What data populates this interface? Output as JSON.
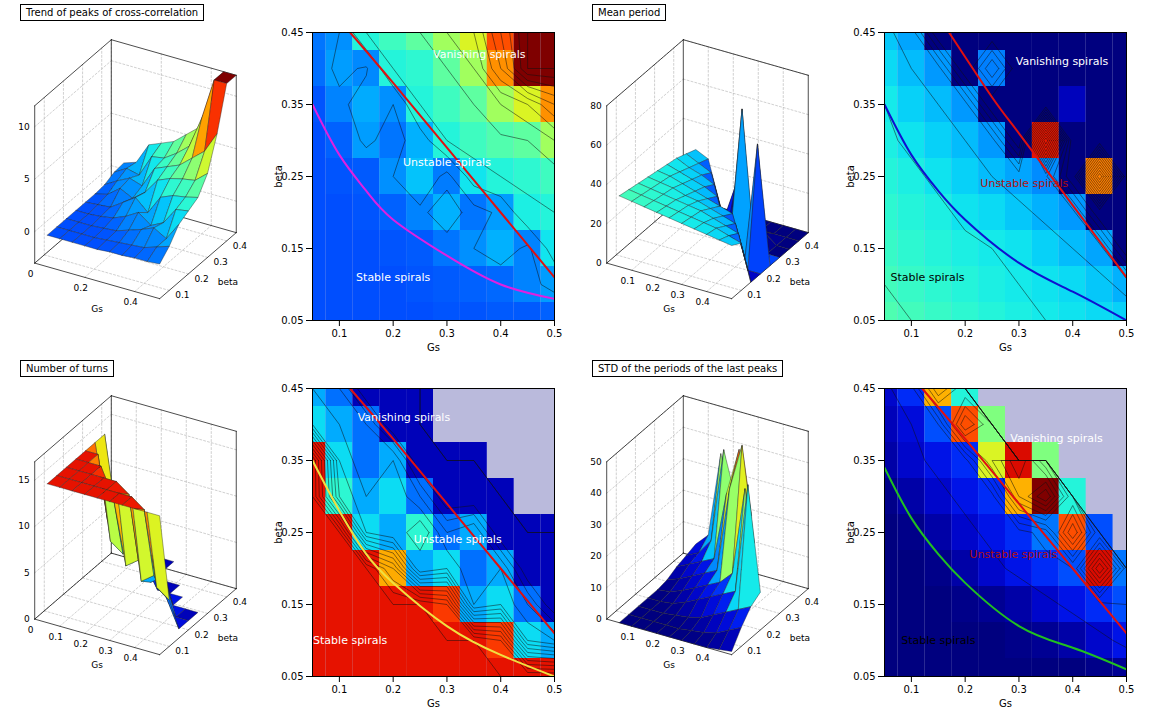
{
  "chart_data": [
    {
      "type": "surface_contour",
      "title": "Trend of peaks of cross-correlation",
      "x": [
        0.05,
        0.1,
        0.15,
        0.2,
        0.25,
        0.3,
        0.35,
        0.4,
        0.45,
        0.5
      ],
      "y": [
        0.05,
        0.1,
        0.15,
        0.2,
        0.25,
        0.3,
        0.35,
        0.4,
        0.45
      ],
      "values": [
        [
          0,
          0,
          0,
          0,
          0,
          0.1,
          0.1,
          0.2,
          0.2,
          0.3
        ],
        [
          0,
          0,
          0,
          0,
          0.1,
          0.2,
          0.3,
          0.4,
          0.8,
          1.2
        ],
        [
          0,
          0,
          0,
          0.1,
          0.2,
          0.6,
          1.0,
          1.5,
          0.8,
          2.5
        ],
        [
          0,
          0,
          0.1,
          0.3,
          0.8,
          1.5,
          0.6,
          1.2,
          2.8,
          3.0
        ],
        [
          0,
          0.1,
          0.2,
          1.0,
          1.8,
          0.7,
          2.5,
          3.0,
          3.2,
          3.5
        ],
        [
          0,
          0.3,
          1.2,
          0.6,
          1.5,
          3.0,
          3.5,
          3.8,
          4.0,
          5.0
        ],
        [
          0.1,
          0.8,
          1.4,
          1.0,
          3.0,
          3.5,
          4.0,
          5.0,
          6.0,
          8.0
        ],
        [
          0.5,
          1.2,
          0.9,
          3.0,
          3.2,
          4.0,
          5.0,
          8.0,
          12,
          12
        ],
        [
          0.6,
          1.0,
          3.0,
          3.5,
          4.0,
          5.0,
          6.0,
          9.0,
          12,
          12
        ]
      ],
      "zlim": [
        -3,
        12
      ],
      "zticks": [
        0,
        5,
        10
      ],
      "surface": {
        "xlabel": "Gs",
        "ylabel": "beta",
        "xlim": [
          0,
          0.5
        ],
        "xticks": [
          0,
          0.2,
          0.4
        ],
        "ylim": [
          0.05,
          0.45
        ],
        "yticks": [
          0.1,
          0.2,
          0.3,
          0.4
        ]
      },
      "contour": {
        "xlabel": "Gs",
        "ylabel": "beta",
        "xlim": [
          0.05,
          0.5
        ],
        "xticks": [
          0.1,
          0.2,
          0.3,
          0.4,
          0.5
        ],
        "ylim": [
          0.05,
          0.45
        ],
        "yticks": [
          0.05,
          0.15,
          0.25,
          0.35,
          0.45
        ]
      },
      "boundaries": [
        {
          "color": "#e01010",
          "x": [
            0.12,
            0.2,
            0.3,
            0.4,
            0.5
          ],
          "y": [
            0.45,
            0.38,
            0.29,
            0.2,
            0.11
          ]
        },
        {
          "color": "#e020e0",
          "x": [
            0.05,
            0.1,
            0.15,
            0.2,
            0.3,
            0.4,
            0.5
          ],
          "y": [
            0.35,
            0.28,
            0.23,
            0.19,
            0.14,
            0.1,
            0.08
          ]
        }
      ],
      "annotations": [
        {
          "text": "Vanishing spirals",
          "x": 0.36,
          "y": 0.42,
          "color": "#ffffff"
        },
        {
          "text": "Unstable spirals",
          "x": 0.3,
          "y": 0.27,
          "color": "#ffffff"
        },
        {
          "text": "Stable spirals",
          "x": 0.2,
          "y": 0.11,
          "color": "#ffffff"
        }
      ]
    },
    {
      "type": "surface_contour",
      "title": "Mean period",
      "x": [
        0.05,
        0.1,
        0.15,
        0.2,
        0.25,
        0.3,
        0.35,
        0.4,
        0.45,
        0.5
      ],
      "y": [
        0.05,
        0.1,
        0.15,
        0.2,
        0.25,
        0.3,
        0.35,
        0.4,
        0.45
      ],
      "values": [
        [
          36,
          35,
          34,
          33,
          32,
          31,
          30,
          29,
          28,
          27
        ],
        [
          35,
          34,
          33,
          32,
          31,
          30,
          29,
          28,
          26,
          24
        ],
        [
          34,
          33,
          32,
          31,
          30,
          29,
          27,
          25,
          23,
          0
        ],
        [
          33,
          32,
          31,
          29,
          28,
          26,
          24,
          22,
          0,
          0
        ],
        [
          32,
          31,
          29,
          27,
          25,
          23,
          21,
          0,
          60,
          0
        ],
        [
          31,
          29,
          27,
          25,
          22,
          0,
          70,
          0,
          0,
          0
        ],
        [
          30,
          27,
          25,
          22,
          0,
          0,
          0,
          5,
          0,
          0
        ],
        [
          28,
          25,
          22,
          0,
          20,
          0,
          0,
          0,
          0,
          0
        ],
        [
          26,
          23,
          0,
          0,
          0,
          0,
          0,
          0,
          0,
          0
        ]
      ],
      "zlim": [
        0,
        80
      ],
      "zticks": [
        0,
        20,
        40,
        60,
        80
      ],
      "surface": {
        "xlabel": "Gs",
        "ylabel": "beta",
        "xlim": [
          0,
          0.5
        ],
        "xticks": [
          0.1,
          0.2,
          0.3,
          0.4
        ],
        "ylim": [
          0.05,
          0.45
        ],
        "yticks": [
          0.1,
          0.2,
          0.3,
          0.4
        ]
      },
      "contour": {
        "xlabel": "Gs",
        "ylabel": "beta",
        "xlim": [
          0.05,
          0.5
        ],
        "xticks": [
          0.1,
          0.2,
          0.3,
          0.4,
          0.5
        ],
        "ylim": [
          0.05,
          0.45
        ],
        "yticks": [
          0.05,
          0.15,
          0.25,
          0.35,
          0.45
        ]
      },
      "boundaries": [
        {
          "color": "#e01010",
          "x": [
            0.17,
            0.25,
            0.3,
            0.4,
            0.5
          ],
          "y": [
            0.45,
            0.36,
            0.31,
            0.21,
            0.11
          ]
        },
        {
          "color": "#1010d0",
          "x": [
            0.05,
            0.1,
            0.15,
            0.2,
            0.3,
            0.4,
            0.5
          ],
          "y": [
            0.35,
            0.28,
            0.23,
            0.19,
            0.13,
            0.09,
            0.05
          ]
        }
      ],
      "annotations": [
        {
          "text": "Vanishing spirals",
          "x": 0.38,
          "y": 0.41,
          "color": "#ffffff"
        },
        {
          "text": "Unstable spirals",
          "x": 0.31,
          "y": 0.24,
          "color": "#b01010"
        },
        {
          "text": "Stable spirals",
          "x": 0.13,
          "y": 0.11,
          "color": "#000000"
        }
      ]
    },
    {
      "type": "surface_contour",
      "title": "Number of turns",
      "x": [
        0.05,
        0.1,
        0.15,
        0.2,
        0.25,
        0.3,
        0.35,
        0.4,
        0.45,
        0.5
      ],
      "y": [
        0.05,
        0.1,
        0.15,
        0.2,
        0.25,
        0.3,
        0.35,
        0.4,
        0.45
      ],
      "values": [
        [
          15,
          15,
          15,
          15,
          15,
          15,
          15,
          15,
          15,
          15
        ],
        [
          15,
          15,
          15,
          15,
          15,
          15,
          15,
          14,
          6,
          5
        ],
        [
          15,
          15,
          15,
          15,
          15,
          14,
          5,
          6,
          4,
          1
        ],
        [
          15,
          15,
          15,
          12,
          5,
          6,
          4,
          5,
          1,
          1
        ],
        [
          15,
          15,
          6,
          5,
          7,
          4,
          5,
          1,
          1,
          1
        ],
        [
          15,
          7,
          5,
          6,
          4,
          1,
          1,
          1,
          null,
          null
        ],
        [
          15,
          6,
          4,
          5,
          1,
          1,
          1,
          null,
          null,
          null
        ],
        [
          6,
          5,
          4,
          1,
          1,
          null,
          null,
          null,
          null,
          null
        ],
        [
          5,
          4,
          1,
          1,
          1,
          null,
          null,
          null,
          null,
          null
        ]
      ],
      "zlim": [
        0,
        17
      ],
      "zticks": [
        0,
        5,
        10,
        15
      ],
      "surface": {
        "xlabel": "Gs",
        "ylabel": "beta",
        "xlim": [
          0,
          0.5
        ],
        "xticks": [
          0,
          0.1,
          0.2,
          0.3,
          0.4
        ],
        "ylim": [
          0.05,
          0.45
        ],
        "yticks": [
          0.1,
          0.2,
          0.3,
          0.4
        ]
      },
      "contour": {
        "xlabel": "Gs",
        "ylabel": "beta",
        "xlim": [
          0.05,
          0.5
        ],
        "xticks": [
          0.1,
          0.2,
          0.3,
          0.4,
          0.5
        ],
        "ylim": [
          0.05,
          0.45
        ],
        "yticks": [
          0.05,
          0.15,
          0.25,
          0.35,
          0.45
        ]
      },
      "boundaries": [
        {
          "color": "#e01010",
          "x": [
            0.12,
            0.2,
            0.3,
            0.4,
            0.5
          ],
          "y": [
            0.45,
            0.38,
            0.29,
            0.2,
            0.11
          ]
        },
        {
          "color": "#f0e040",
          "x": [
            0.05,
            0.1,
            0.15,
            0.2,
            0.3,
            0.4,
            0.5
          ],
          "y": [
            0.35,
            0.28,
            0.22,
            0.18,
            0.12,
            0.08,
            0.05
          ]
        }
      ],
      "annotations": [
        {
          "text": "Vanishing spirals",
          "x": 0.22,
          "y": 0.41,
          "color": "#ffffff"
        },
        {
          "text": "Unstable spirals",
          "x": 0.32,
          "y": 0.24,
          "color": "#ffffff"
        },
        {
          "text": "Stable spirals",
          "x": 0.12,
          "y": 0.1,
          "color": "#ffffff"
        }
      ]
    },
    {
      "type": "surface_contour",
      "title": "STD of the periods of the last peaks",
      "x": [
        0.05,
        0.1,
        0.15,
        0.2,
        0.25,
        0.3,
        0.35,
        0.4,
        0.45,
        0.5
      ],
      "y": [
        0.05,
        0.1,
        0.15,
        0.2,
        0.25,
        0.3,
        0.35,
        0.4,
        0.45
      ],
      "values": [
        [
          0,
          0,
          0,
          0,
          0,
          0,
          0,
          0,
          0.5,
          1
        ],
        [
          0,
          0,
          0,
          0,
          0,
          0.5,
          1,
          2,
          4,
          6
        ],
        [
          0,
          0,
          0,
          0.5,
          1,
          2,
          4,
          6,
          8,
          10
        ],
        [
          0,
          0,
          0.5,
          2,
          4,
          6,
          8,
          10,
          45,
          12
        ],
        [
          0,
          0.5,
          2,
          4,
          6,
          8,
          12,
          40,
          10,
          null
        ],
        [
          0.5,
          2,
          4,
          6,
          8,
          35,
          50,
          20,
          null,
          null
        ],
        [
          2,
          4,
          6,
          8,
          30,
          45,
          25,
          null,
          null,
          null
        ],
        [
          3,
          5,
          10,
          40,
          25,
          null,
          null,
          null,
          null,
          null
        ],
        [
          4,
          8,
          35,
          20,
          null,
          null,
          null,
          null,
          null,
          null
        ]
      ],
      "zlim": [
        0,
        50
      ],
      "zticks": [
        0,
        10,
        20,
        30,
        40,
        50
      ],
      "surface": {
        "xlabel": "Gs",
        "ylabel": "beta",
        "xlim": [
          0,
          0.5
        ],
        "xticks": [
          0.1,
          0.2,
          0.3,
          0.4
        ],
        "ylim": [
          0.05,
          0.45
        ],
        "yticks": [
          0.1,
          0.2,
          0.3,
          0.4
        ]
      },
      "contour": {
        "xlabel": "Gs",
        "ylabel": "beta",
        "xlim": [
          0.05,
          0.5
        ],
        "xticks": [
          0.1,
          0.2,
          0.3,
          0.4,
          0.5
        ],
        "ylim": [
          0.05,
          0.45
        ],
        "yticks": [
          0.05,
          0.15,
          0.25,
          0.35,
          0.45
        ]
      },
      "boundaries": [
        {
          "color": "#e01010",
          "x": [
            0.12,
            0.2,
            0.3,
            0.4,
            0.5
          ],
          "y": [
            0.45,
            0.38,
            0.29,
            0.2,
            0.11
          ]
        },
        {
          "color": "#20c020",
          "x": [
            0.05,
            0.1,
            0.15,
            0.2,
            0.3,
            0.4,
            0.5
          ],
          "y": [
            0.34,
            0.27,
            0.22,
            0.18,
            0.12,
            0.09,
            0.06
          ]
        }
      ],
      "annotations": [
        {
          "text": "Vanishing spirals",
          "x": 0.37,
          "y": 0.38,
          "color": "#ffffff"
        },
        {
          "text": "Unstable spirals",
          "x": 0.29,
          "y": 0.22,
          "color": "#b01010"
        },
        {
          "text": "Stable spirals",
          "x": 0.15,
          "y": 0.1,
          "color": "#000000"
        }
      ]
    }
  ]
}
